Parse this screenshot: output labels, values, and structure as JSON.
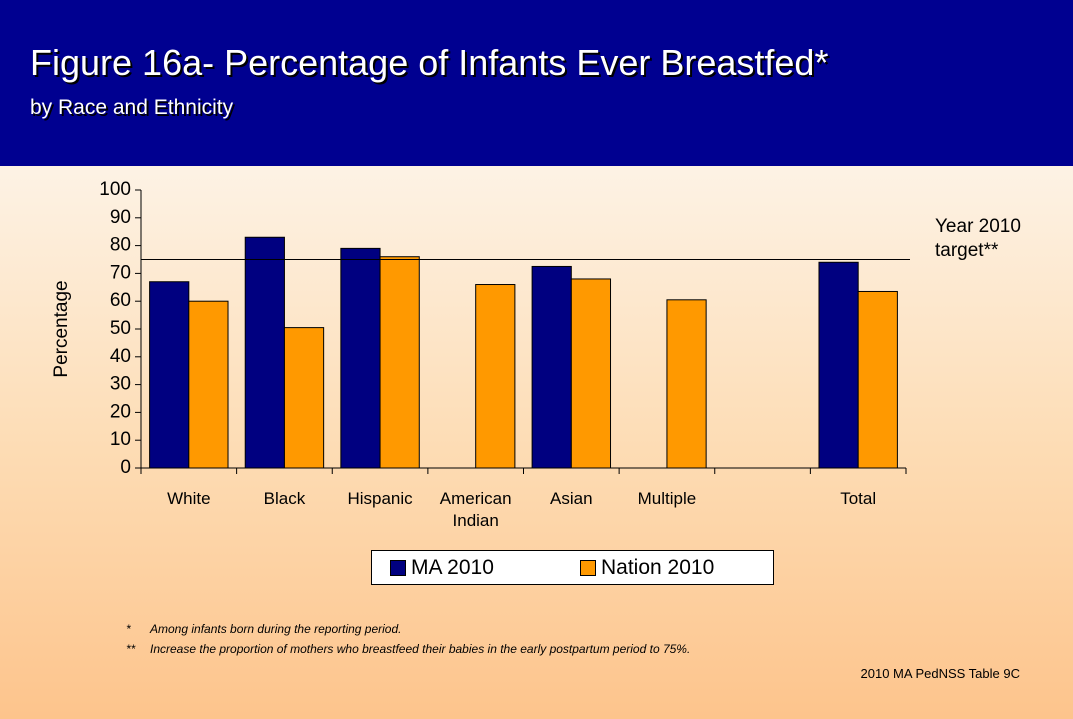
{
  "header": {
    "title": "Figure 16a- Percentage of Infants Ever Breastfed*",
    "subtitle": "by Race and Ethnicity"
  },
  "chart_data": {
    "type": "bar",
    "y_label": "Percentage",
    "categories": [
      "White",
      "Black",
      "Hispanic",
      "American Indian",
      "Asian",
      "Multiple",
      null,
      "Total"
    ],
    "series": [
      {
        "name": "MA 2010",
        "color": "#000080",
        "values": [
          67,
          83,
          79,
          null,
          72.5,
          null,
          null,
          74
        ]
      },
      {
        "name": "Nation 2010",
        "color": "#ff9900",
        "values": [
          60,
          50.5,
          76,
          66,
          68,
          60.5,
          null,
          63.5
        ]
      }
    ],
    "ylim": [
      0,
      100
    ],
    "yticks": [
      0,
      10,
      20,
      30,
      40,
      50,
      60,
      70,
      80,
      90,
      100
    ],
    "grid": false,
    "target": {
      "value": 75,
      "label": "Year 2010 target**"
    }
  },
  "footnotes": [
    {
      "mark": "*",
      "text": "Among infants born during the reporting period."
    },
    {
      "mark": "**",
      "text": "Increase the proportion of mothers who breastfeed their babies in the early postpartum period to 75%."
    }
  ],
  "source": "2010 MA PedNSS Table 9C"
}
